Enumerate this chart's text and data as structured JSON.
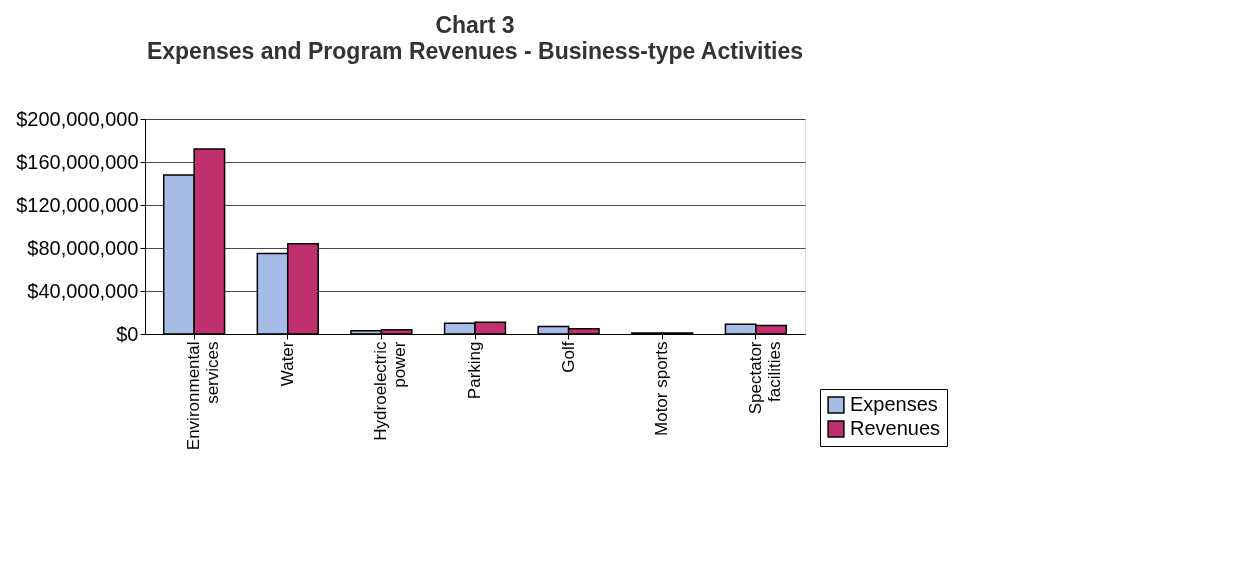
{
  "chart_data": {
    "type": "bar",
    "title": "Chart 3",
    "subtitle": "Expenses and Program Revenues - Business-type Activities",
    "categories": [
      "Environmental services",
      "Water",
      "Hydroelectric power",
      "Parking",
      "Golf",
      "Motor sports",
      "Spectator facilities"
    ],
    "series": [
      {
        "name": "Expenses",
        "color": "#a6bde8",
        "values": [
          148000000,
          75000000,
          3000000,
          10000000,
          7000000,
          1000000,
          9000000
        ]
      },
      {
        "name": "Revenues",
        "color": "#c0306e",
        "values": [
          172000000,
          84000000,
          4000000,
          11000000,
          5000000,
          1000000,
          8000000
        ]
      }
    ],
    "ylim": [
      0,
      200000000
    ],
    "yticks": [
      {
        "value": 0,
        "label": "$0"
      },
      {
        "value": 40000000,
        "label": "$40,000,000"
      },
      {
        "value": 80000000,
        "label": "$80,000,000"
      },
      {
        "value": 120000000,
        "label": "$120,000,000"
      },
      {
        "value": 160000000,
        "label": "$160,000,000"
      },
      {
        "value": 200000000,
        "label": "$200,000,000"
      }
    ],
    "grid": "y",
    "legend": "bottom right"
  }
}
